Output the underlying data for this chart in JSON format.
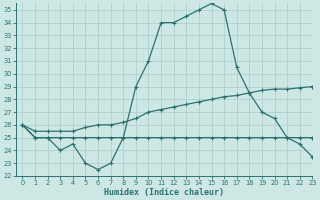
{
  "x": [
    0,
    1,
    2,
    3,
    4,
    5,
    6,
    7,
    8,
    9,
    10,
    11,
    12,
    13,
    14,
    15,
    16,
    17,
    18,
    19,
    20,
    21,
    22,
    23
  ],
  "line1": [
    26,
    25,
    25,
    24,
    24.5,
    23,
    22.5,
    23,
    25,
    29,
    31,
    34,
    34,
    34.5,
    35,
    35.5,
    35,
    30.5,
    28.5,
    27,
    26.5,
    25,
    24.5,
    23.5
  ],
  "line2": [
    26,
    25.5,
    25.5,
    25.5,
    25.5,
    25.8,
    26,
    26,
    26.2,
    26.5,
    27,
    27.2,
    27.4,
    27.6,
    27.8,
    28,
    28.2,
    28.3,
    28.5,
    28.7,
    28.8,
    28.8,
    28.9,
    29
  ],
  "line3": [
    26,
    25,
    25,
    25,
    25,
    25,
    25,
    25,
    25,
    25,
    25,
    25,
    25,
    25,
    25,
    25,
    25,
    25,
    25,
    25,
    25,
    25,
    25,
    25
  ],
  "line_color": "#2e7070",
  "bg_color": "#cde8e4",
  "grid_color": "#a8ccc8",
  "xlabel": "Humidex (Indice chaleur)",
  "ylim": [
    22,
    35.5
  ],
  "xlim": [
    -0.5,
    23
  ],
  "yticks": [
    22,
    23,
    24,
    25,
    26,
    27,
    28,
    29,
    30,
    31,
    32,
    33,
    34,
    35
  ],
  "xticks": [
    0,
    1,
    2,
    3,
    4,
    5,
    6,
    7,
    8,
    9,
    10,
    11,
    12,
    13,
    14,
    15,
    16,
    17,
    18,
    19,
    20,
    21,
    22,
    23
  ]
}
